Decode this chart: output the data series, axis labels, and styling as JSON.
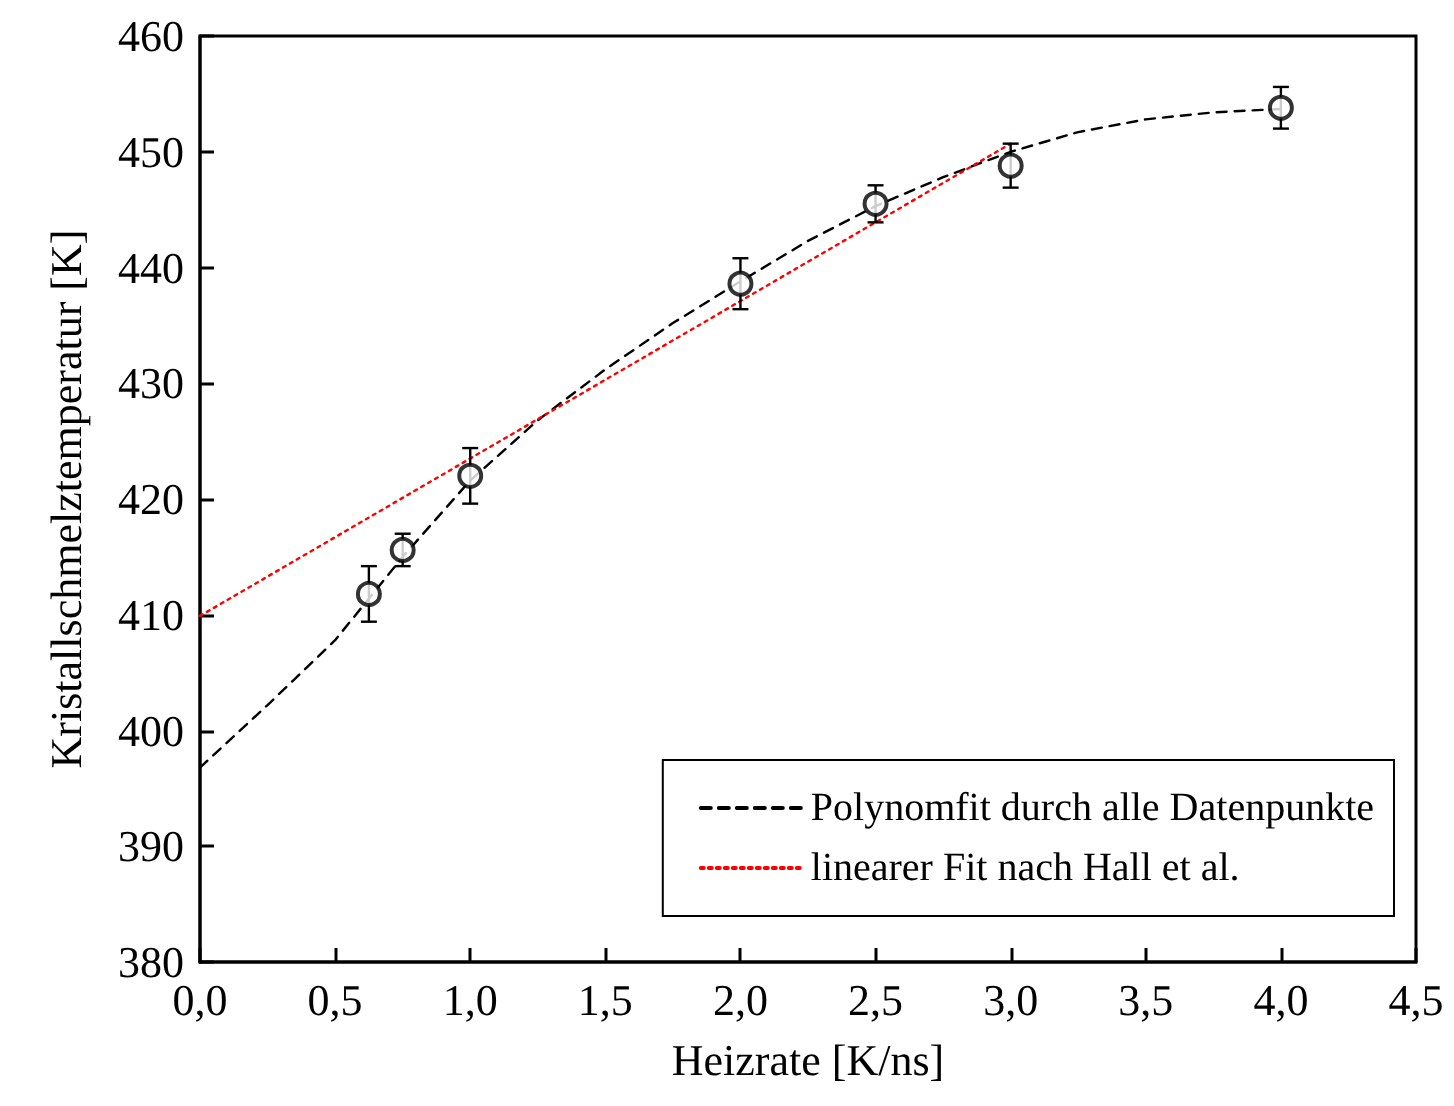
{
  "chart_data": {
    "type": "scatter",
    "xlabel": "Heizrate [K/ns]",
    "ylabel": "Kristallschmelztemperatur [K]",
    "xlim": [
      0,
      4.5
    ],
    "xticks": [
      {
        "value": 0,
        "label": "0,0"
      },
      {
        "value": 0.5,
        "label": "0,5"
      },
      {
        "value": 1,
        "label": "1,0"
      },
      {
        "value": 1.5,
        "label": "1,5"
      },
      {
        "value": 2,
        "label": "2,0"
      },
      {
        "value": 2.5,
        "label": "2,5"
      },
      {
        "value": 3,
        "label": "3,0"
      },
      {
        "value": 3.5,
        "label": "3,5"
      },
      {
        "value": 4,
        "label": "4,0"
      },
      {
        "value": 4.5,
        "label": "4,5"
      }
    ],
    "ylim": [
      380,
      460
    ],
    "yticks": [
      380,
      390,
      400,
      410,
      420,
      430,
      440,
      450,
      460
    ],
    "grid": false,
    "legend": "bottom right",
    "series": [
      {
        "color": "#000000",
        "marker": "circle",
        "x": [
          0.625,
          0.75,
          1.0,
          2.0,
          2.5,
          3.0,
          4.0
        ],
        "values": [
          411.8,
          415.6,
          422.0,
          438.6,
          445.5,
          448.8,
          453.8
        ],
        "errors": [
          2.4,
          1.4,
          2.4,
          2.2,
          1.6,
          1.9,
          1.8
        ]
      },
      {
        "type": "line",
        "name": "Polynomfit durch alle Datenpunkte",
        "color": "#000000",
        "marker": "none",
        "line_style": "dashed",
        "x": [
          0,
          0.25,
          0.5,
          0.75,
          1.0,
          1.25,
          1.5,
          1.75,
          2.0,
          2.25,
          2.5,
          2.75,
          3.0,
          3.25,
          3.5,
          3.75,
          4.0
        ],
        "values": [
          396.8,
          402.2,
          407.8,
          415.0,
          421.6,
          426.8,
          431.2,
          435.2,
          438.8,
          442.3,
          445.3,
          447.8,
          450.0,
          451.7,
          452.8,
          453.4,
          453.7
        ]
      },
      {
        "type": "line",
        "name": "linearer Fit nach Hall et al.",
        "color": "#ff0000",
        "marker": "none",
        "line_style": "dotted",
        "x": [
          0,
          3.0
        ],
        "values": [
          409.9,
          450.7
        ]
      }
    ]
  }
}
